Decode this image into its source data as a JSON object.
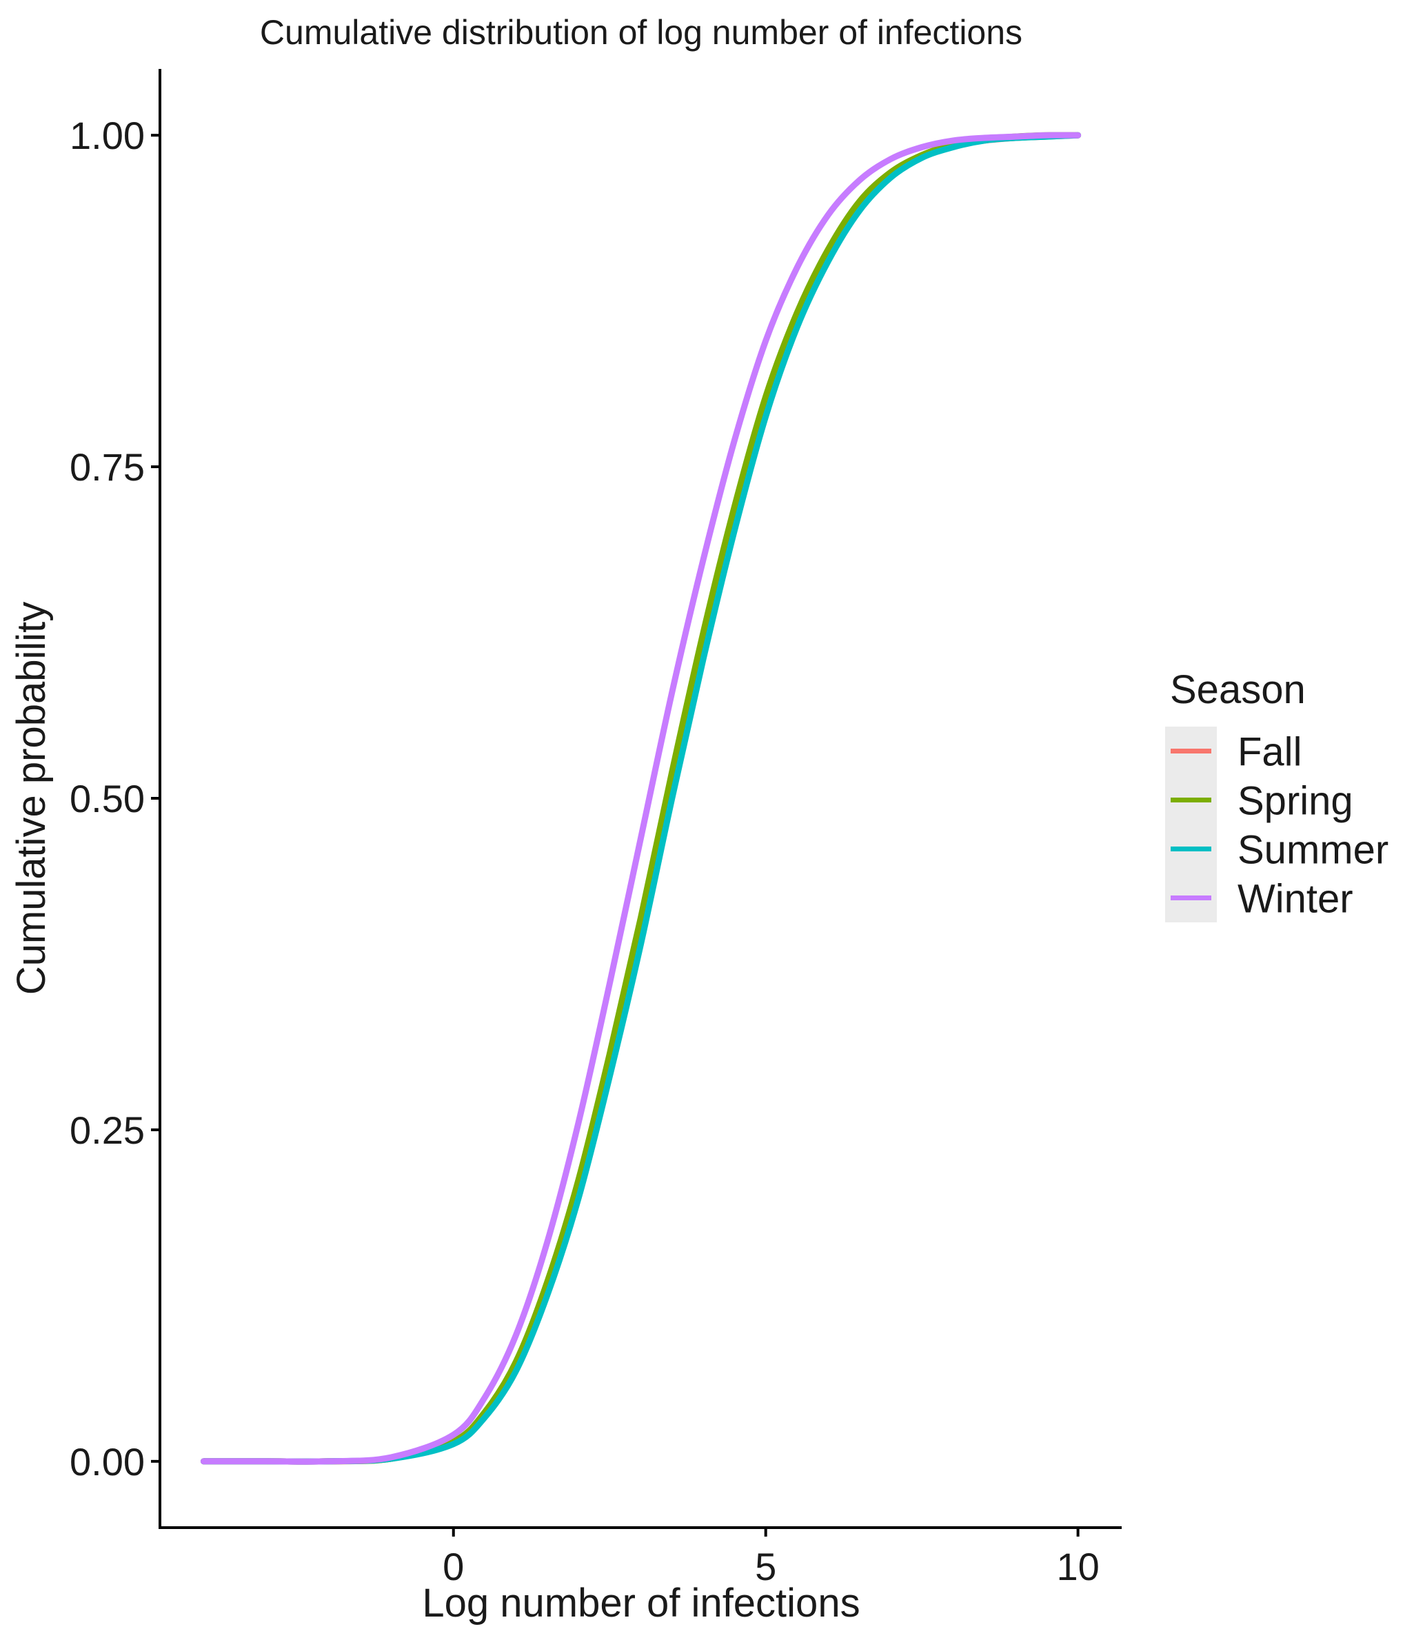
{
  "chart_data": {
    "type": "line",
    "title": "Cumulative distribution of log number of infections",
    "xlabel": "Log number of infections",
    "ylabel": "Cumulative probability",
    "xlim": [
      -4.7,
      10.7
    ],
    "ylim": [
      -0.05,
      1.05
    ],
    "xticks": [
      0,
      5,
      10
    ],
    "xtick_labels": [
      "0",
      "5",
      "10"
    ],
    "yticks": [
      0,
      0.25,
      0.5,
      0.75,
      1
    ],
    "ytick_labels": [
      "0.00",
      "0.25",
      "0.50",
      "0.75",
      "1.00"
    ],
    "grid": false,
    "legend": {
      "title": "Season",
      "position": "right"
    },
    "x": [
      -4,
      -3,
      -2,
      -1,
      0,
      0.5,
      1,
      1.5,
      2,
      2.5,
      3,
      3.5,
      4,
      4.5,
      5,
      5.5,
      6,
      6.5,
      7,
      7.5,
      8,
      8.5,
      9,
      9.5,
      10
    ],
    "series": [
      {
        "name": "Fall",
        "color": "#F8766D",
        "values": [
          0,
          0,
          0,
          0.002,
          0.014,
          0.035,
          0.072,
          0.13,
          0.205,
          0.3,
          0.4,
          0.51,
          0.615,
          0.71,
          0.795,
          0.86,
          0.91,
          0.947,
          0.97,
          0.984,
          0.992,
          0.996,
          0.998,
          0.999,
          1
        ]
      },
      {
        "name": "Spring",
        "color": "#7CAE00",
        "values": [
          0,
          0,
          0,
          0.002,
          0.015,
          0.037,
          0.075,
          0.135,
          0.212,
          0.307,
          0.41,
          0.52,
          0.625,
          0.72,
          0.803,
          0.866,
          0.914,
          0.95,
          0.972,
          0.985,
          0.993,
          0.997,
          0.999,
          1,
          1
        ]
      },
      {
        "name": "Summer",
        "color": "#00BFC4",
        "values": [
          0,
          0,
          0,
          0.002,
          0.013,
          0.033,
          0.068,
          0.125,
          0.198,
          0.29,
          0.39,
          0.5,
          0.605,
          0.702,
          0.788,
          0.855,
          0.905,
          0.943,
          0.968,
          0.983,
          0.991,
          0.996,
          0.998,
          0.999,
          1
        ]
      },
      {
        "name": "Winter",
        "color": "#C77CFF",
        "values": [
          0,
          0,
          0,
          0.003,
          0.02,
          0.048,
          0.095,
          0.165,
          0.255,
          0.36,
          0.47,
          0.58,
          0.68,
          0.77,
          0.845,
          0.9,
          0.94,
          0.966,
          0.982,
          0.991,
          0.996,
          0.998,
          0.999,
          1,
          1
        ]
      }
    ]
  }
}
